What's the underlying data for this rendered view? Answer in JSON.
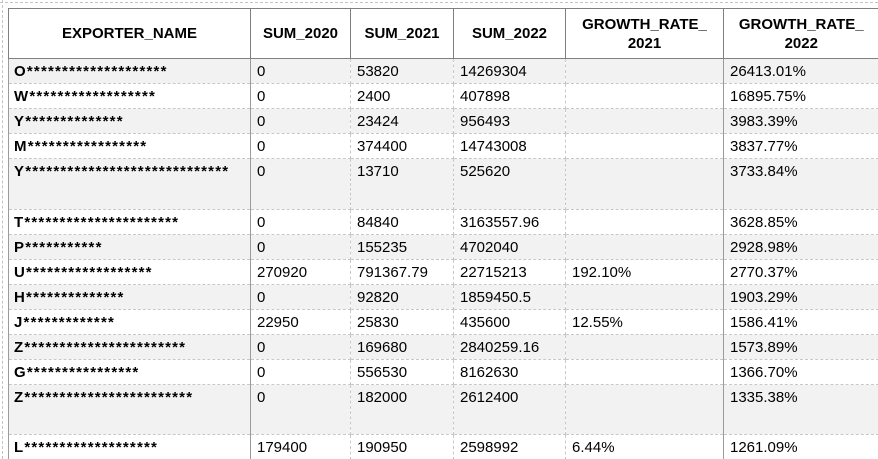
{
  "colors": {
    "row_alt_background": "#f2f2f2",
    "grid_dashed": "#c8c8c8",
    "grid_solid": "#9b9b9b",
    "header_border": "#7f7f7f",
    "text": "#000000"
  },
  "table": {
    "headers": {
      "exporter_name": {
        "label": "EXPORTER_NAME"
      },
      "sum_2020": {
        "label": "SUM_2020"
      },
      "sum_2021": {
        "label": "SUM_2021"
      },
      "sum_2022": {
        "label": "SUM_2022"
      },
      "growth_rate_2021": {
        "label": "GROWTH_RATE_",
        "label2": "2021"
      },
      "growth_rate_2022": {
        "label": "GROWTH_RATE_",
        "label2": "2022"
      }
    },
    "rows": [
      {
        "name": "O********************",
        "sum_2020": "0",
        "sum_2021": "53820",
        "sum_2022": "14269304",
        "growth_rate_2021": "",
        "growth_rate_2022": "26413.01%"
      },
      {
        "name": "W******************",
        "sum_2020": "0",
        "sum_2021": "2400",
        "sum_2022": "407898",
        "growth_rate_2021": "",
        "growth_rate_2022": "16895.75%"
      },
      {
        "name": "Y**************",
        "sum_2020": "0",
        "sum_2021": "23424",
        "sum_2022": "956493",
        "growth_rate_2021": "",
        "growth_rate_2022": "3983.39%"
      },
      {
        "name": "M*****************",
        "sum_2020": "0",
        "sum_2021": "374400",
        "sum_2022": "14743008",
        "growth_rate_2021": "",
        "growth_rate_2022": "3837.77%"
      },
      {
        "name": "Y*****************************",
        "sum_2020": "0",
        "sum_2021": "13710",
        "sum_2022": "525620",
        "growth_rate_2021": "",
        "growth_rate_2022": "3733.84%"
      },
      {
        "name": "T**********************",
        "sum_2020": "0",
        "sum_2021": "84840",
        "sum_2022": "3163557.96",
        "growth_rate_2021": "",
        "growth_rate_2022": "3628.85%"
      },
      {
        "name": "P***********",
        "sum_2020": "0",
        "sum_2021": "155235",
        "sum_2022": "4702040",
        "growth_rate_2021": "",
        "growth_rate_2022": "2928.98%"
      },
      {
        "name": "U******************",
        "sum_2020": "270920",
        "sum_2021": "791367.79",
        "sum_2022": "22715213",
        "growth_rate_2021": "192.10%",
        "growth_rate_2022": "2770.37%"
      },
      {
        "name": "H**************",
        "sum_2020": "0",
        "sum_2021": "92820",
        "sum_2022": "1859450.5",
        "growth_rate_2021": "",
        "growth_rate_2022": "1903.29%"
      },
      {
        "name": "J*************",
        "sum_2020": "22950",
        "sum_2021": "25830",
        "sum_2022": "435600",
        "growth_rate_2021": "12.55%",
        "growth_rate_2022": "1586.41%"
      },
      {
        "name": "Z***********************",
        "sum_2020": "0",
        "sum_2021": "169680",
        "sum_2022": "2840259.16",
        "growth_rate_2021": "",
        "growth_rate_2022": "1573.89%"
      },
      {
        "name": "G****************",
        "sum_2020": "0",
        "sum_2021": "556530",
        "sum_2022": "8162630",
        "growth_rate_2021": "",
        "growth_rate_2022": "1366.70%"
      },
      {
        "name": "Z************************",
        "sum_2020": "0",
        "sum_2021": "182000",
        "sum_2022": "2612400",
        "growth_rate_2021": "",
        "growth_rate_2022": "1335.38%"
      },
      {
        "name": "L*******************",
        "sum_2020": "179400",
        "sum_2021": "190950",
        "sum_2022": "2598992",
        "growth_rate_2021": "6.44%",
        "growth_rate_2022": "1261.09%"
      }
    ]
  }
}
